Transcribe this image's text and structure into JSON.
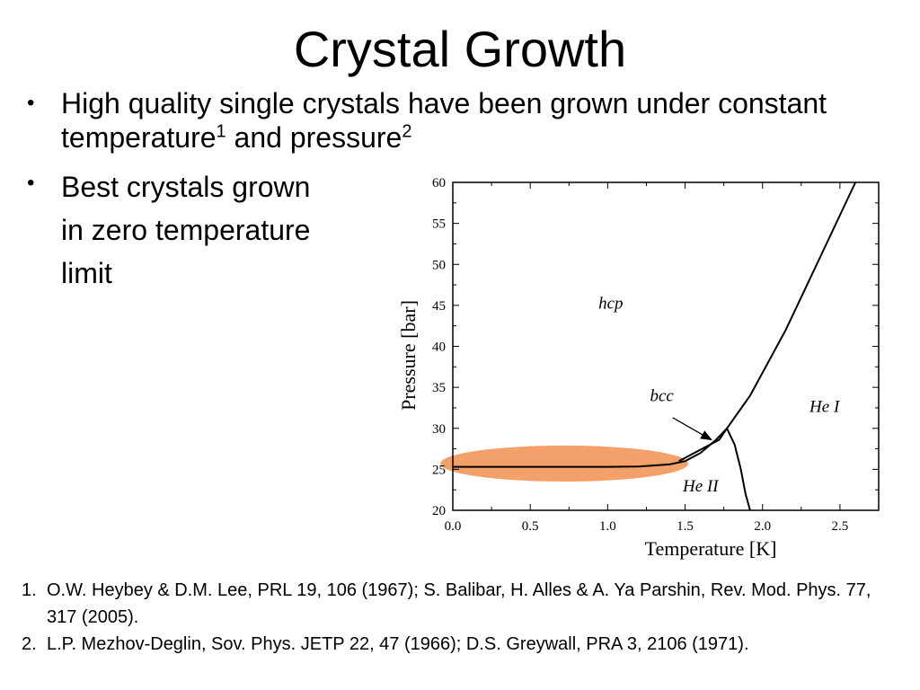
{
  "slide": {
    "title": "Crystal Growth",
    "bullets": [
      {
        "marker": "•",
        "part1": "High quality single crystals have been grown under constant temperature",
        "sup1": "1",
        "part2": " and pressure",
        "sup2": "2"
      },
      {
        "marker": "•",
        "lines": [
          "Best crystals grown",
          "in zero temperature",
          "limit"
        ]
      }
    ],
    "references": [
      {
        "num": "1.",
        "text": "O.W. Heybey & D.M. Lee, PRL 19, 106 (1967); S. Balibar, H. Alles & A. Ya Parshin, Rev. Mod. Phys. 77, 317 (2005)."
      },
      {
        "num": "2.",
        "text": "L.P. Mezhov-Deglin, Sov. Phys. JETP 22, 47 (1966); D.S. Greywall, PRA 3, 2106 (1971)."
      }
    ]
  },
  "chart_data": {
    "type": "line",
    "title": "",
    "xlabel": "Temperature [K]",
    "ylabel": "Pressure [bar]",
    "xlim": [
      0.0,
      2.75
    ],
    "ylim": [
      20,
      60
    ],
    "xticks": [
      "0.0",
      "0.5",
      "1.0",
      "1.5",
      "2.0",
      "2.5"
    ],
    "xtick_values": [
      0.0,
      0.5,
      1.0,
      1.5,
      2.0,
      2.5
    ],
    "yticks": [
      "20",
      "25",
      "30",
      "35",
      "40",
      "45",
      "50",
      "55",
      "60"
    ],
    "ytick_values": [
      20,
      25,
      30,
      35,
      40,
      45,
      50,
      55,
      60
    ],
    "grid": false,
    "series": [
      {
        "values": [
          [
            0.0,
            25.3
          ],
          [
            0.5,
            25.3
          ],
          [
            1.0,
            25.3
          ],
          [
            1.2,
            25.35
          ],
          [
            1.4,
            25.6
          ],
          [
            1.5,
            26.0
          ],
          [
            1.6,
            27.0
          ],
          [
            1.7,
            28.6
          ],
          [
            1.77,
            30.0
          ]
        ]
      },
      {
        "values": [
          [
            1.46,
            26.0
          ],
          [
            1.55,
            26.9
          ],
          [
            1.65,
            27.9
          ],
          [
            1.72,
            28.6
          ],
          [
            1.77,
            30.0
          ]
        ]
      },
      {
        "values": [
          [
            1.77,
            30.0
          ],
          [
            1.82,
            28.0
          ],
          [
            1.86,
            25.0
          ],
          [
            1.89,
            22.0
          ],
          [
            1.92,
            20.0
          ]
        ]
      },
      {
        "values": [
          [
            1.77,
            30.0
          ],
          [
            1.92,
            34.0
          ],
          [
            2.15,
            42.0
          ],
          [
            2.4,
            52.0
          ],
          [
            2.6,
            60.0
          ]
        ]
      }
    ],
    "annotations": [
      {
        "text": "hcp",
        "x": 1.02,
        "y": 44.6
      },
      {
        "text": "bcc",
        "x": 1.35,
        "y": 33.3
      },
      {
        "text": "He I",
        "x": 2.4,
        "y": 32.0
      },
      {
        "text": "He II",
        "x": 1.6,
        "y": 22.3
      }
    ],
    "arrow": {
      "from": [
        1.42,
        31.3
      ],
      "to": [
        1.67,
        28.6
      ]
    },
    "highlight": {
      "shape": "ellipse",
      "cx": 0.72,
      "cy": 25.7,
      "rx": 0.8,
      "ry": 2.2,
      "color": "#F4A06A"
    },
    "line_color": "#000000"
  }
}
